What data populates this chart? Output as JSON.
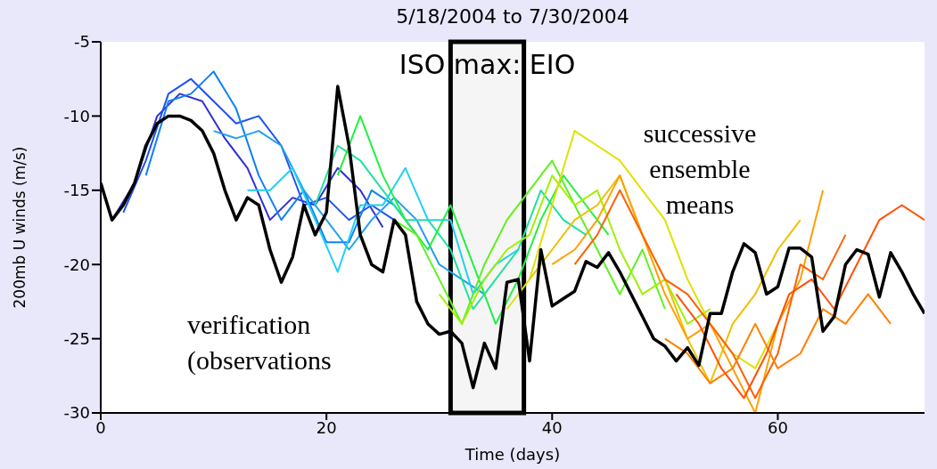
{
  "chart_data": {
    "type": "line",
    "title": "5/18/2004 to 7/30/2004",
    "xlabel": "Time (days)",
    "ylabel": "200mb U winds (m/s)",
    "xlim": [
      0,
      73
    ],
    "xticks": [
      0,
      20,
      40,
      60
    ],
    "ylim": [
      -30,
      -5
    ],
    "yticks": [
      -5,
      -10,
      -15,
      -20,
      -25,
      -30
    ],
    "marker": "none",
    "line_style": "solid",
    "annotations": [
      "verification (observations",
      "successive ensemble means"
    ],
    "bands": [
      {
        "axis": "x",
        "from": 31,
        "to": 37.5,
        "label": "ISO max: EIO",
        "color": "#000000"
      }
    ],
    "series": [
      {
        "color": "#3030d0",
        "x": [
          1,
          3,
          5,
          7,
          9,
          11,
          13,
          15,
          17,
          19,
          21,
          23,
          25
        ],
        "values": [
          -17,
          -14.5,
          -10,
          -8.5,
          -9,
          -11.5,
          -13.5,
          -17,
          -15.5,
          -16,
          -13.5,
          -15,
          -17.5
        ]
      },
      {
        "color": "#2050f0",
        "x": [
          2,
          4,
          6,
          8,
          10,
          12,
          14,
          16,
          18,
          20,
          22,
          24,
          26
        ],
        "values": [
          -16.5,
          -13,
          -8.5,
          -7.5,
          -9,
          -10.5,
          -10,
          -12,
          -16,
          -15.5,
          -17,
          -16,
          -17
        ]
      },
      {
        "color": "#1080f0",
        "x": [
          4,
          6,
          8,
          10,
          12,
          14,
          16,
          18,
          20,
          22,
          24,
          26,
          28
        ],
        "values": [
          -14,
          -9,
          -8.5,
          -7,
          -9.5,
          -14,
          -17,
          -15,
          -18.5,
          -18.5,
          -15,
          -16,
          -18
        ]
      },
      {
        "color": "#20a0f0",
        "x": [
          10,
          12,
          14,
          16,
          18,
          20,
          22,
          24,
          26,
          28,
          30,
          32,
          34
        ],
        "values": [
          -11,
          -11.5,
          -11,
          -12,
          -15,
          -17,
          -19,
          -17,
          -15.5,
          -17,
          -20,
          -21,
          -22
        ]
      },
      {
        "color": "#20d0f0",
        "x": [
          13,
          15,
          17,
          19,
          21,
          23,
          25,
          27,
          29,
          31,
          33,
          35,
          37
        ],
        "values": [
          -15,
          -15,
          -13.5,
          -17,
          -20.5,
          -16,
          -16,
          -13.5,
          -17,
          -17,
          -22,
          -20,
          -19
        ]
      },
      {
        "color": "#20e0a0",
        "x": [
          19,
          21,
          23,
          25,
          27,
          29,
          31,
          33,
          35,
          37,
          39,
          41,
          43
        ],
        "values": [
          -16,
          -12,
          -13,
          -15,
          -17,
          -17,
          -19,
          -23,
          -21,
          -19,
          -15,
          -17,
          -18
        ]
      },
      {
        "color": "#20f040",
        "x": [
          21,
          23,
          25,
          27,
          29,
          31,
          33,
          35,
          37,
          39,
          41,
          43,
          45
        ],
        "values": [
          -14,
          -10,
          -14,
          -17,
          -19,
          -16,
          -20,
          -24,
          -21,
          -17,
          -14,
          -16,
          -18
        ]
      },
      {
        "color": "#60f020",
        "x": [
          26,
          28,
          30,
          32,
          34,
          36,
          38,
          40,
          42,
          44,
          46,
          48,
          50
        ],
        "values": [
          -17,
          -18,
          -21,
          -24,
          -20,
          -17,
          -15,
          -13,
          -16,
          -19,
          -22,
          -19,
          -23
        ]
      },
      {
        "color": "#a0f000",
        "x": [
          30,
          32,
          34,
          36,
          38,
          40,
          42,
          44,
          46,
          48,
          50,
          52,
          54
        ],
        "values": [
          -22,
          -24,
          -21,
          -19,
          -18,
          -14,
          -16,
          -15,
          -19,
          -22,
          -21,
          -24,
          -23
        ]
      },
      {
        "color": "#e0e000",
        "x": [
          36,
          38,
          40,
          42,
          44,
          46,
          48,
          50,
          52,
          54,
          56,
          58,
          60
        ],
        "values": [
          -23,
          -21,
          -16,
          -11,
          -12,
          -13,
          -15,
          -17,
          -21,
          -24,
          -26,
          -27,
          -24
        ]
      },
      {
        "color": "#f0c000",
        "x": [
          38,
          40,
          42,
          44,
          46,
          48,
          50,
          52,
          54,
          56,
          58,
          60,
          62
        ],
        "values": [
          -21,
          -19,
          -17,
          -16,
          -14,
          -18,
          -21,
          -25,
          -28,
          -24,
          -22,
          -19,
          -17
        ]
      },
      {
        "color": "#ffa000",
        "x": [
          40,
          42,
          44,
          46,
          48,
          50,
          52,
          54,
          56,
          58,
          60,
          62,
          64
        ],
        "values": [
          -20,
          -19,
          -17,
          -14,
          -18,
          -22,
          -25,
          -24,
          -27,
          -30,
          -24,
          -21,
          -15
        ]
      },
      {
        "color": "#ff6000",
        "x": [
          42,
          44,
          46,
          48,
          50,
          52,
          54,
          56,
          58,
          60,
          62,
          64,
          66
        ],
        "values": [
          -20,
          -18,
          -15,
          -18,
          -21,
          -22,
          -24,
          -26,
          -29,
          -26,
          -20,
          -21,
          -18
        ]
      },
      {
        "color": "#ff8000",
        "x": [
          50,
          52,
          54,
          56,
          58,
          60,
          62,
          64,
          66,
          68,
          70
        ],
        "values": [
          -25,
          -26,
          -28,
          -27,
          -24,
          -27,
          -26,
          -23,
          -24,
          -22,
          -24
        ]
      },
      {
        "color": "#ff5000",
        "x": [
          51,
          53,
          55,
          57,
          59,
          61,
          63,
          65,
          67,
          69,
          71,
          73
        ],
        "values": [
          -22,
          -24,
          -27,
          -29,
          -26,
          -22,
          -21,
          -23,
          -20,
          -17,
          -16,
          -17
        ]
      },
      {
        "color": "#000000",
        "x": [
          0,
          1,
          2,
          3,
          4,
          5,
          6,
          7,
          8,
          9,
          10,
          11,
          12,
          13,
          14,
          15,
          16,
          17,
          18,
          19,
          20,
          21,
          22,
          23,
          24,
          25,
          26,
          27,
          28,
          29,
          30,
          31,
          32,
          33,
          34,
          35,
          36,
          37,
          38,
          39,
          40,
          41,
          42,
          43,
          44,
          45,
          46,
          47,
          48,
          49,
          50,
          51,
          52,
          53,
          54,
          55,
          56,
          57,
          58,
          59,
          60,
          61,
          62,
          63,
          64,
          65,
          66,
          67,
          68,
          69,
          70,
          71,
          72,
          73
        ],
        "values": [
          -14.5,
          -17,
          -16,
          -14.5,
          -12,
          -10.5,
          -10,
          -10,
          -10.3,
          -11,
          -12.5,
          -15,
          -17,
          -15.5,
          -16,
          -19,
          -21.2,
          -19.5,
          -16,
          -18,
          -16.5,
          -8,
          -12,
          -18,
          -20,
          -20.5,
          -17,
          -18,
          -22.5,
          -24,
          -24.7,
          -24.5,
          -25.3,
          -28.3,
          -25.3,
          -27,
          -21.2,
          -21,
          -26.5,
          -19,
          -22.8,
          -22.3,
          -21.8,
          -19.8,
          -20.2,
          -19.2,
          -20.5,
          -22,
          -23.5,
          -25,
          -25.5,
          -26.5,
          -25.6,
          -26.8,
          -23.3,
          -23.3,
          -20.5,
          -18.6,
          -19.2,
          -22,
          -21.5,
          -18.9,
          -18.9,
          -19.5,
          -24.5,
          -23.5,
          -20,
          -19,
          -19.3,
          -22.2,
          -19.2,
          -20.5,
          -22,
          -23.3
        ]
      }
    ]
  }
}
